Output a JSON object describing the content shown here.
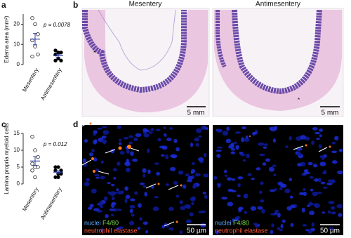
{
  "panel_labels": [
    "a",
    "b",
    "c",
    "d"
  ],
  "chart_data": [
    {
      "type": "dot",
      "y_label": "Edema area (mm²)",
      "annotation": "p = 0.0078",
      "categories": [
        "Mesentery",
        "Antimesentery"
      ],
      "markers": [
        "open",
        "filled"
      ],
      "values": [
        [
          23,
          20,
          15,
          12,
          9,
          5,
          4
        ],
        [
          7,
          6,
          6,
          5,
          3,
          2,
          2
        ]
      ],
      "means": [
        12.6,
        4.4
      ],
      "errors": [
        2.8,
        0.7
      ],
      "ylim": [
        0,
        25
      ],
      "yticks": [
        0,
        10,
        20
      ]
    },
    {
      "type": "dot",
      "y_label": "Lamina propria myeloid cells",
      "annotation": "p = 0.012",
      "categories": [
        "Mesentery",
        "Antimesentery"
      ],
      "markers": [
        "open",
        "filled"
      ],
      "values": [
        [
          14,
          10,
          8,
          6,
          5,
          5,
          4,
          2
        ],
        [
          5,
          5,
          4,
          4,
          3,
          3,
          2,
          2
        ]
      ],
      "means": [
        6.8,
        3.5
      ],
      "errors": [
        1.3,
        0.4
      ],
      "ylim": [
        0,
        15
      ],
      "yticks": [
        0,
        5,
        10,
        15
      ]
    }
  ],
  "histology": {
    "titles": [
      "Mesentery",
      "Antimesentery"
    ],
    "scale_bar": "5 mm",
    "marker": "*"
  },
  "fluorescence": {
    "legend": [
      "nuclei",
      "F4/80",
      "neutrophil elastase"
    ],
    "scale_bar": "50 µm"
  }
}
